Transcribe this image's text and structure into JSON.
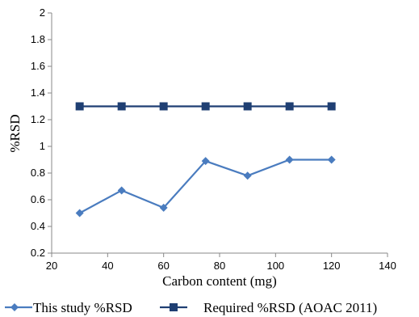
{
  "chart_data": {
    "type": "line",
    "title": "",
    "xlabel": "Carbon content (mg)",
    "ylabel": "%RSD",
    "xlim": [
      20,
      140
    ],
    "ylim": [
      0.2,
      2
    ],
    "x_ticks": [
      20,
      40,
      60,
      80,
      100,
      120,
      140
    ],
    "y_ticks": [
      0.2,
      0.4,
      0.6,
      0.8,
      1,
      1.2,
      1.4,
      1.6,
      1.8,
      2
    ],
    "grid": false,
    "legend_position": "bottom",
    "series": [
      {
        "name": "This study %RSD",
        "marker": "diamond",
        "color": "#4a7cbf",
        "x": [
          30,
          45,
          60,
          75,
          90,
          105,
          120
        ],
        "y": [
          0.5,
          0.67,
          0.54,
          0.89,
          0.78,
          0.9,
          0.9
        ]
      },
      {
        "name": "Required %RSD (AOAC 2011)",
        "marker": "square",
        "color": "#1f3f73",
        "x": [
          30,
          45,
          60,
          75,
          90,
          105,
          120
        ],
        "y": [
          1.3,
          1.3,
          1.3,
          1.3,
          1.3,
          1.3,
          1.3
        ]
      }
    ]
  }
}
